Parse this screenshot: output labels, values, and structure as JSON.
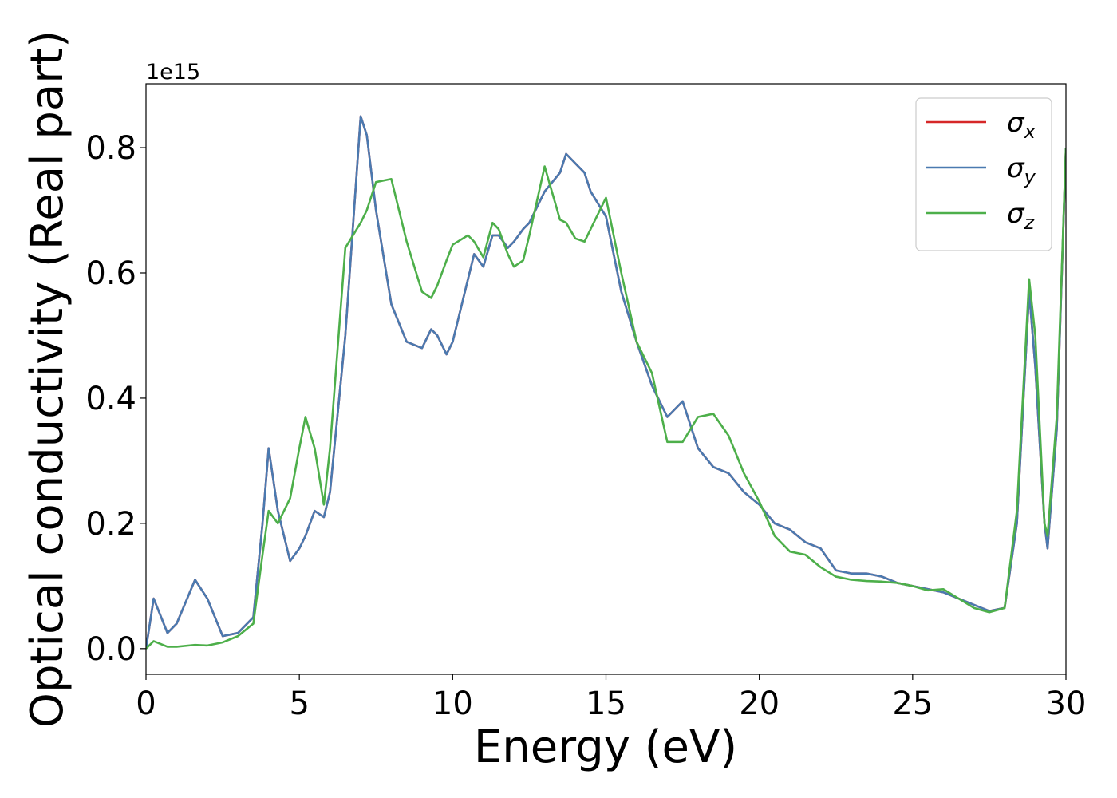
{
  "chart_data": {
    "type": "line",
    "xlabel": "Energy (eV)",
    "ylabel": "Optical conductivity (Real part)",
    "y_offset_label": "1e15",
    "xlim": [
      0,
      30
    ],
    "xticks": [
      0,
      5,
      10,
      15,
      20,
      25,
      30
    ],
    "ylim": [
      -0.041,
      0.902
    ],
    "yticks": [
      {
        "value": 0,
        "label": "0.0"
      },
      0.2,
      0.4,
      0.6,
      0.8
    ],
    "legend": "upper right",
    "x": [
      0,
      0.25,
      0.7,
      1.0,
      1.6,
      2.0,
      2.5,
      3.0,
      3.5,
      3.8,
      4.0,
      4.3,
      4.7,
      5.0,
      5.2,
      5.5,
      5.8,
      6.0,
      6.5,
      7.0,
      7.2,
      7.5,
      8.0,
      8.5,
      9.0,
      9.3,
      9.5,
      9.8,
      10.0,
      10.5,
      10.7,
      11.0,
      11.3,
      11.5,
      11.8,
      12.0,
      12.3,
      12.5,
      13.0,
      13.5,
      13.7,
      14.0,
      14.3,
      14.5,
      15.0,
      15.5,
      16.0,
      16.5,
      17.0,
      17.5,
      18.0,
      18.5,
      19.0,
      19.5,
      20.0,
      20.5,
      21.0,
      21.5,
      22.0,
      22.5,
      23.0,
      23.5,
      24.0,
      24.5,
      25.0,
      25.5,
      26.0,
      26.5,
      27.0,
      27.5,
      28.0,
      28.4,
      28.8,
      29.0,
      29.3,
      29.4,
      29.7,
      30.0
    ],
    "series": [
      {
        "name": "σx",
        "color": "#d62728",
        "values": [
          0,
          0.08,
          0.025,
          0.04,
          0.11,
          0.08,
          0.02,
          0.025,
          0.05,
          0.2,
          0.32,
          0.22,
          0.14,
          0.16,
          0.18,
          0.22,
          0.21,
          0.25,
          0.5,
          0.85,
          0.82,
          0.7,
          0.55,
          0.49,
          0.48,
          0.51,
          0.5,
          0.47,
          0.49,
          0.59,
          0.63,
          0.61,
          0.66,
          0.66,
          0.64,
          0.65,
          0.67,
          0.68,
          0.73,
          0.76,
          0.79,
          0.775,
          0.76,
          0.73,
          0.69,
          0.57,
          0.49,
          0.42,
          0.37,
          0.395,
          0.32,
          0.29,
          0.28,
          0.25,
          0.23,
          0.2,
          0.19,
          0.17,
          0.16,
          0.125,
          0.12,
          0.12,
          0.115,
          0.105,
          0.1,
          0.095,
          0.09,
          0.08,
          0.07,
          0.06,
          0.065,
          0.2,
          0.57,
          0.45,
          0.2,
          0.16,
          0.35,
          0.8
        ]
      },
      {
        "name": "σy",
        "color": "#4a7ab0",
        "values": [
          0,
          0.08,
          0.025,
          0.04,
          0.11,
          0.08,
          0.02,
          0.025,
          0.05,
          0.2,
          0.32,
          0.22,
          0.14,
          0.16,
          0.18,
          0.22,
          0.21,
          0.25,
          0.5,
          0.85,
          0.82,
          0.7,
          0.55,
          0.49,
          0.48,
          0.51,
          0.5,
          0.47,
          0.49,
          0.59,
          0.63,
          0.61,
          0.66,
          0.66,
          0.64,
          0.65,
          0.67,
          0.68,
          0.73,
          0.76,
          0.79,
          0.775,
          0.76,
          0.73,
          0.69,
          0.57,
          0.49,
          0.42,
          0.37,
          0.395,
          0.32,
          0.29,
          0.28,
          0.25,
          0.23,
          0.2,
          0.19,
          0.17,
          0.16,
          0.125,
          0.12,
          0.12,
          0.115,
          0.105,
          0.1,
          0.095,
          0.09,
          0.08,
          0.07,
          0.06,
          0.065,
          0.2,
          0.57,
          0.45,
          0.2,
          0.16,
          0.35,
          0.8
        ]
      },
      {
        "name": "σz",
        "color": "#4daf4a",
        "values": [
          0,
          0.012,
          0.003,
          0.003,
          0.006,
          0.005,
          0.01,
          0.02,
          0.04,
          0.15,
          0.22,
          0.2,
          0.24,
          0.32,
          0.37,
          0.32,
          0.23,
          0.32,
          0.64,
          0.68,
          0.7,
          0.745,
          0.75,
          0.65,
          0.57,
          0.56,
          0.58,
          0.62,
          0.645,
          0.66,
          0.65,
          0.625,
          0.68,
          0.67,
          0.63,
          0.61,
          0.62,
          0.66,
          0.77,
          0.685,
          0.68,
          0.655,
          0.65,
          0.67,
          0.72,
          0.6,
          0.49,
          0.44,
          0.33,
          0.33,
          0.37,
          0.375,
          0.34,
          0.28,
          0.235,
          0.18,
          0.155,
          0.15,
          0.13,
          0.115,
          0.11,
          0.108,
          0.107,
          0.105,
          0.1,
          0.093,
          0.095,
          0.08,
          0.065,
          0.058,
          0.065,
          0.22,
          0.59,
          0.5,
          0.2,
          0.18,
          0.37,
          0.8
        ]
      }
    ]
  }
}
